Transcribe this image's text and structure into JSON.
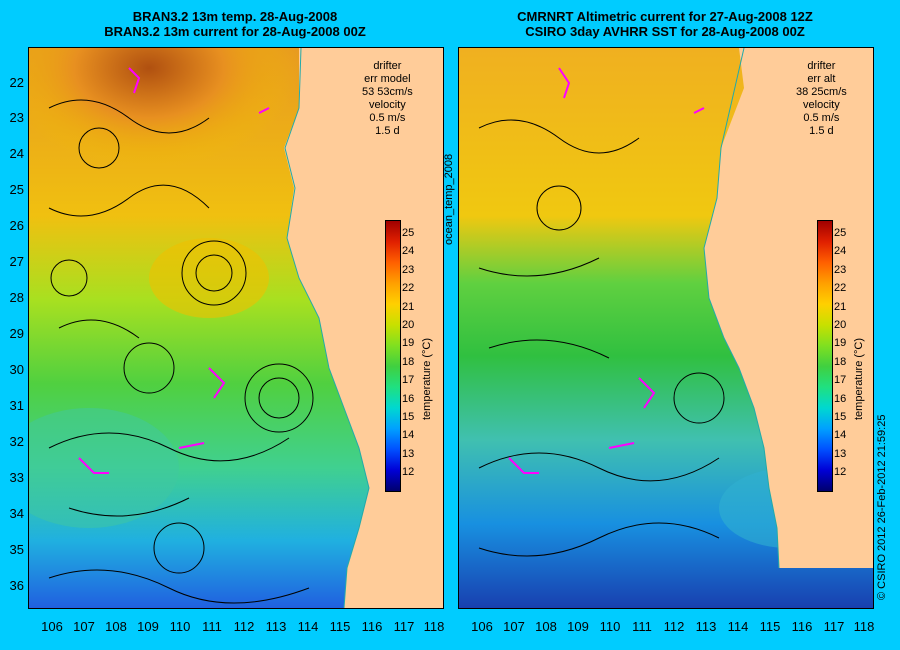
{
  "titles": {
    "left_line1": "BRAN3.2 13m temp. 28-Aug-2008",
    "left_line2": "BRAN3.2 13m current for 28-Aug-2008 00Z",
    "right_line1": "CMRNRT Altimetric current for 27-Aug-2008 12Z",
    "right_line2": "CSIRO 3day AVHRR SST for 28-Aug-2008 00Z"
  },
  "legend_left": {
    "drifter": "drifter",
    "err_label": "err model",
    "err_value": "53 53cm/s",
    "velocity": "velocity",
    "vel_scale": "0.5 m/s",
    "vel_time": "1.5 d"
  },
  "legend_right": {
    "drifter": "drifter",
    "err_label": "err alt",
    "err_value": "38 25cm/s",
    "velocity": "velocity",
    "vel_scale": "0.5 m/s",
    "vel_time": "1.5 d"
  },
  "colorbar": {
    "label": "temperature (°C)",
    "ticks": [
      "25",
      "24",
      "23",
      "22",
      "21",
      "20",
      "19",
      "18",
      "17",
      "16",
      "15",
      "14",
      "13",
      "12"
    ]
  },
  "side_note": "ocean_temp_2008",
  "copyright": "© CSIRO 2012   26-Feb-2012 21:59:25",
  "lat_ticks": [
    "22",
    "23",
    "24",
    "25",
    "26",
    "27",
    "28",
    "29",
    "30",
    "31",
    "32",
    "33",
    "34",
    "35",
    "36"
  ],
  "lon_ticks": [
    "106",
    "107",
    "108",
    "109",
    "110",
    "111",
    "112",
    "113",
    "114",
    "115",
    "116",
    "117",
    "118"
  ],
  "colors": {
    "background": "#00ccff",
    "land": "#ffcc99",
    "drifter": "#ff00ff"
  }
}
